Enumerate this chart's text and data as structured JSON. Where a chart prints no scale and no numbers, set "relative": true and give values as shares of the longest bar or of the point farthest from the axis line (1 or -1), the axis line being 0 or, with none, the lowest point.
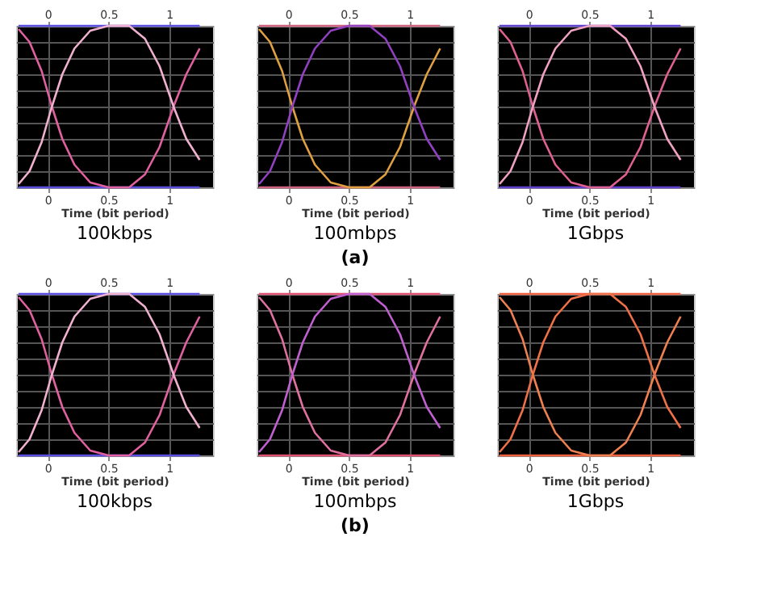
{
  "chart_data": [
    {
      "type": "line",
      "title": "100kbps",
      "xlabel": "Time (bit period)",
      "relative": true,
      "xlim": [
        -0.26,
        1.36
      ],
      "xticks": [
        0,
        0.5,
        1
      ],
      "x2lim": [
        -0.26,
        1.36
      ],
      "x2ticks": [
        0,
        0.5,
        1
      ],
      "grid": true,
      "line_style": "solid",
      "marker": "none",
      "series": [
        {
          "color": "#5a4ee0",
          "x": [
            -0.24,
            1.25
          ],
          "values": [
            1,
            1
          ]
        },
        {
          "color": "#5a4ee0",
          "x": [
            -0.24,
            1.25
          ],
          "values": [
            0,
            0
          ]
        },
        {
          "color": "#e060a0",
          "x": [
            -0.24,
            -0.15,
            -0.05,
            0.03,
            0.12,
            0.22,
            0.35,
            0.5,
            0.67,
            0.8,
            0.92,
            1.04,
            1.14,
            1.25
          ],
          "values": [
            0.98,
            0.9,
            0.72,
            0.51,
            0.3,
            0.14,
            0.03,
            0,
            0,
            0.08,
            0.25,
            0.51,
            0.7,
            0.86
          ]
        },
        {
          "color": "#f0b0d0",
          "x": [
            -0.24,
            -0.15,
            -0.05,
            0.03,
            0.12,
            0.22,
            0.35,
            0.5,
            0.67,
            0.8,
            0.92,
            1.04,
            1.14,
            1.25
          ],
          "values": [
            0.02,
            0.1,
            0.28,
            0.49,
            0.7,
            0.86,
            0.97,
            1,
            1,
            0.92,
            0.75,
            0.49,
            0.3,
            0.17
          ]
        }
      ]
    },
    {
      "type": "line",
      "title": "100mbps",
      "annotations": [
        "(a)"
      ],
      "xlabel": "Time (bit period)",
      "relative": true,
      "xlim": [
        -0.26,
        1.36
      ],
      "xticks": [
        0,
        0.5,
        1
      ],
      "x2lim": [
        -0.26,
        1.36
      ],
      "x2ticks": [
        0,
        0.5,
        1
      ],
      "grid": true,
      "line_style": "solid",
      "marker": "none",
      "series": [
        {
          "color": "#d06080",
          "x": [
            -0.24,
            1.25
          ],
          "values": [
            1,
            1
          ]
        },
        {
          "color": "#d06080",
          "x": [
            -0.24,
            1.25
          ],
          "values": [
            0,
            0
          ]
        },
        {
          "color": "#e0a040",
          "x": [
            -0.24,
            -0.15,
            -0.05,
            0.03,
            0.12,
            0.22,
            0.35,
            0.5,
            0.67,
            0.8,
            0.92,
            1.04,
            1.14,
            1.25
          ],
          "values": [
            0.98,
            0.9,
            0.72,
            0.51,
            0.3,
            0.14,
            0.03,
            0,
            0,
            0.08,
            0.25,
            0.51,
            0.7,
            0.86
          ]
        },
        {
          "color": "#9040c0",
          "x": [
            -0.24,
            -0.15,
            -0.05,
            0.03,
            0.12,
            0.22,
            0.35,
            0.5,
            0.67,
            0.8,
            0.92,
            1.04,
            1.14,
            1.25
          ],
          "values": [
            0.02,
            0.1,
            0.28,
            0.49,
            0.7,
            0.86,
            0.97,
            1,
            1,
            0.92,
            0.75,
            0.49,
            0.3,
            0.17
          ]
        }
      ]
    },
    {
      "type": "line",
      "title": "1Gbps",
      "xlabel": "Time (bit period)",
      "relative": true,
      "xlim": [
        -0.26,
        1.36
      ],
      "xticks": [
        0,
        0.5,
        1
      ],
      "x2lim": [
        -0.26,
        1.36
      ],
      "x2ticks": [
        0,
        0.5,
        1
      ],
      "grid": true,
      "line_style": "solid",
      "marker": "none",
      "series": [
        {
          "color": "#6040d0",
          "x": [
            -0.24,
            1.25
          ],
          "values": [
            1,
            1
          ]
        },
        {
          "color": "#6040d0",
          "x": [
            -0.24,
            1.25
          ],
          "values": [
            0,
            0
          ]
        },
        {
          "color": "#e06090",
          "x": [
            -0.24,
            -0.15,
            -0.05,
            0.03,
            0.12,
            0.22,
            0.35,
            0.5,
            0.67,
            0.8,
            0.92,
            1.04,
            1.14,
            1.25
          ],
          "values": [
            0.98,
            0.9,
            0.72,
            0.51,
            0.3,
            0.14,
            0.03,
            0,
            0,
            0.08,
            0.25,
            0.51,
            0.7,
            0.86
          ]
        },
        {
          "color": "#f0a0c0",
          "x": [
            -0.24,
            -0.15,
            -0.05,
            0.03,
            0.12,
            0.22,
            0.35,
            0.5,
            0.67,
            0.8,
            0.92,
            1.04,
            1.14,
            1.25
          ],
          "values": [
            0.02,
            0.1,
            0.28,
            0.49,
            0.7,
            0.86,
            0.97,
            1,
            1,
            0.92,
            0.75,
            0.49,
            0.3,
            0.17
          ]
        }
      ]
    },
    {
      "type": "line",
      "title": "100kbps",
      "xlabel": "Time (bit period)",
      "relative": true,
      "xlim": [
        -0.26,
        1.36
      ],
      "xticks": [
        0,
        0.5,
        1
      ],
      "x2lim": [
        -0.26,
        1.36
      ],
      "x2ticks": [
        0,
        0.5,
        1
      ],
      "grid": true,
      "line_style": "solid",
      "marker": "none",
      "series": [
        {
          "color": "#5a4ee0",
          "x": [
            -0.24,
            1.25
          ],
          "values": [
            1,
            1
          ]
        },
        {
          "color": "#5a4ee0",
          "x": [
            -0.24,
            1.25
          ],
          "values": [
            0,
            0
          ]
        },
        {
          "color": "#e060a0",
          "x": [
            -0.24,
            -0.15,
            -0.05,
            0.03,
            0.12,
            0.22,
            0.35,
            0.5,
            0.67,
            0.8,
            0.92,
            1.04,
            1.14,
            1.25
          ],
          "values": [
            0.98,
            0.9,
            0.72,
            0.51,
            0.3,
            0.14,
            0.03,
            0,
            0,
            0.08,
            0.25,
            0.51,
            0.7,
            0.86
          ]
        },
        {
          "color": "#f0b0d0",
          "x": [
            -0.24,
            -0.15,
            -0.05,
            0.03,
            0.12,
            0.22,
            0.35,
            0.5,
            0.67,
            0.8,
            0.92,
            1.04,
            1.14,
            1.25
          ],
          "values": [
            0.02,
            0.1,
            0.28,
            0.49,
            0.7,
            0.86,
            0.97,
            1,
            1,
            0.92,
            0.75,
            0.49,
            0.3,
            0.17
          ]
        }
      ]
    },
    {
      "type": "line",
      "title": "100mbps",
      "annotations": [
        "(b)"
      ],
      "xlabel": "Time (bit period)",
      "relative": true,
      "xlim": [
        -0.26,
        1.36
      ],
      "xticks": [
        0,
        0.5,
        1
      ],
      "x2lim": [
        -0.26,
        1.36
      ],
      "x2ticks": [
        0,
        0.5,
        1
      ],
      "grid": true,
      "line_style": "solid",
      "marker": "none",
      "series": [
        {
          "color": "#e05070",
          "x": [
            -0.24,
            1.25
          ],
          "values": [
            1,
            1
          ]
        },
        {
          "color": "#e05070",
          "x": [
            -0.24,
            1.25
          ],
          "values": [
            0,
            0
          ]
        },
        {
          "color": "#e070a0",
          "x": [
            -0.24,
            -0.15,
            -0.05,
            0.03,
            0.12,
            0.22,
            0.35,
            0.5,
            0.67,
            0.8,
            0.92,
            1.04,
            1.14,
            1.25
          ],
          "values": [
            0.98,
            0.9,
            0.72,
            0.51,
            0.3,
            0.14,
            0.03,
            0,
            0,
            0.08,
            0.25,
            0.51,
            0.7,
            0.86
          ]
        },
        {
          "color": "#c060d0",
          "x": [
            -0.24,
            -0.15,
            -0.05,
            0.03,
            0.12,
            0.22,
            0.35,
            0.5,
            0.67,
            0.8,
            0.92,
            1.04,
            1.14,
            1.25
          ],
          "values": [
            0.02,
            0.1,
            0.28,
            0.49,
            0.7,
            0.86,
            0.97,
            1,
            1,
            0.92,
            0.75,
            0.49,
            0.3,
            0.17
          ]
        }
      ]
    },
    {
      "type": "line",
      "title": "1Gbps",
      "xlabel": "Time (bit period)",
      "relative": true,
      "xlim": [
        -0.26,
        1.36
      ],
      "xticks": [
        0,
        0.5,
        1
      ],
      "x2lim": [
        -0.26,
        1.36
      ],
      "x2ticks": [
        0,
        0.5,
        1
      ],
      "grid": true,
      "line_style": "solid",
      "marker": "none",
      "series": [
        {
          "color": "#f06040",
          "x": [
            -0.24,
            1.25
          ],
          "values": [
            1,
            1
          ]
        },
        {
          "color": "#f06040",
          "x": [
            -0.24,
            1.25
          ],
          "values": [
            0,
            0
          ]
        },
        {
          "color": "#f08050",
          "x": [
            -0.24,
            -0.15,
            -0.05,
            0.03,
            0.12,
            0.22,
            0.35,
            0.5,
            0.67,
            0.8,
            0.92,
            1.04,
            1.14,
            1.25
          ],
          "values": [
            0.98,
            0.9,
            0.72,
            0.51,
            0.3,
            0.14,
            0.03,
            0,
            0,
            0.08,
            0.25,
            0.51,
            0.7,
            0.86
          ]
        },
        {
          "color": "#f07048",
          "x": [
            -0.24,
            -0.15,
            -0.05,
            0.03,
            0.12,
            0.22,
            0.35,
            0.5,
            0.67,
            0.8,
            0.92,
            1.04,
            1.14,
            1.25
          ],
          "values": [
            0.02,
            0.1,
            0.28,
            0.49,
            0.7,
            0.86,
            0.97,
            1,
            1,
            0.92,
            0.75,
            0.49,
            0.3,
            0.17
          ]
        }
      ]
    }
  ]
}
